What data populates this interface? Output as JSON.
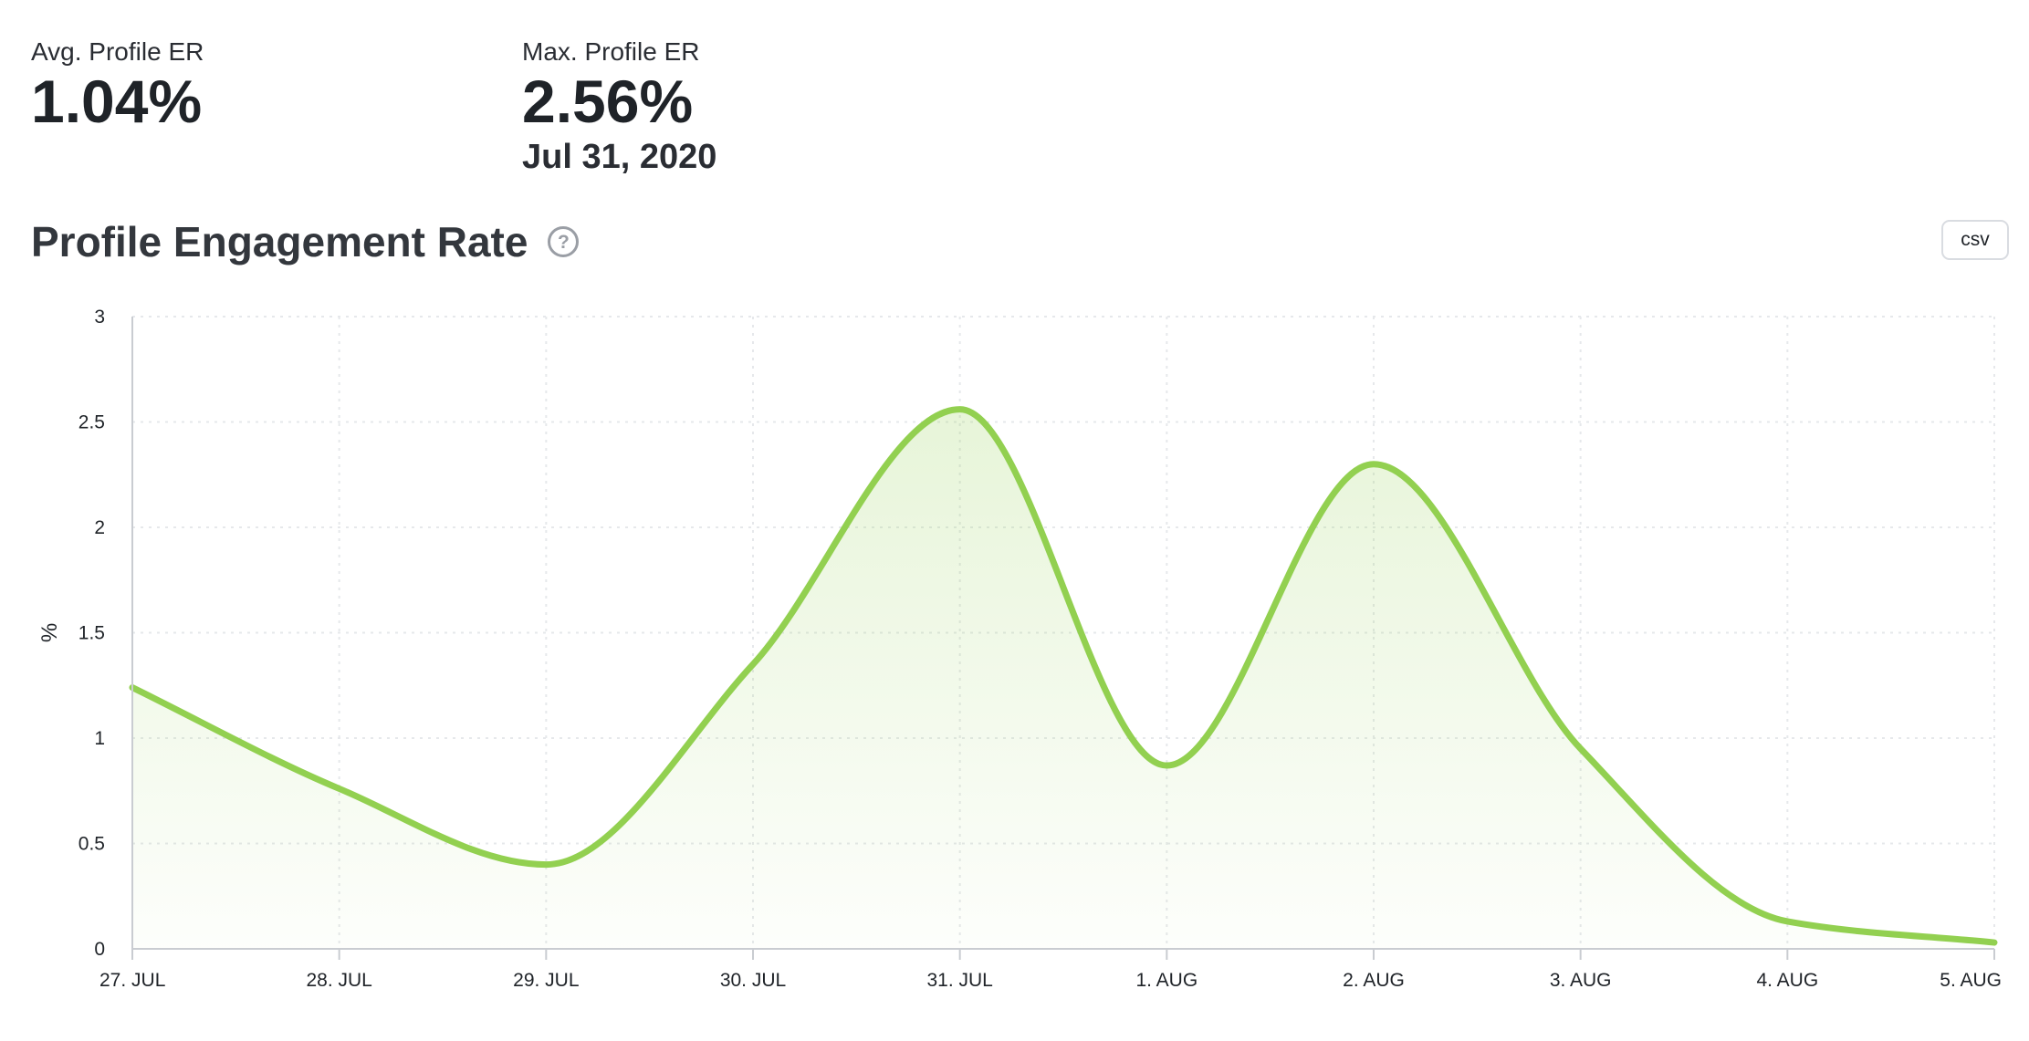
{
  "stats": {
    "avg": {
      "label": "Avg. Profile ER",
      "value": "1.04%"
    },
    "max": {
      "label": "Max. Profile ER",
      "value": "2.56%",
      "date": "Jul 31, 2020"
    }
  },
  "chart_header": {
    "title": "Profile Engagement Rate",
    "help_icon": "question-circle-icon",
    "csv_label": "csv"
  },
  "colors": {
    "line": "#92d050",
    "fill": "#92d050",
    "grid": "#e6e8eb",
    "axis": "#c9ccd1"
  },
  "chart_data": {
    "type": "area",
    "title": "Profile Engagement Rate",
    "xlabel": "",
    "ylabel": "%",
    "categories": [
      "27. JUL",
      "28. JUL",
      "29. JUL",
      "30. JUL",
      "31. JUL",
      "1. AUG",
      "2. AUG",
      "3. AUG",
      "4. AUG",
      "5. AUG"
    ],
    "series": [
      {
        "values": [
          1.24,
          0.76,
          0.4,
          1.35,
          2.56,
          0.87,
          2.3,
          0.95,
          0.13,
          0.03
        ]
      }
    ],
    "ylim": [
      0,
      3
    ],
    "yticks": [
      0,
      0.5,
      1,
      1.5,
      2,
      2.5,
      3
    ],
    "ytick_labels": [
      "0",
      "0.5",
      "1",
      "1.5",
      "2",
      "2.5",
      "3"
    ],
    "grid": true,
    "legend": false
  }
}
